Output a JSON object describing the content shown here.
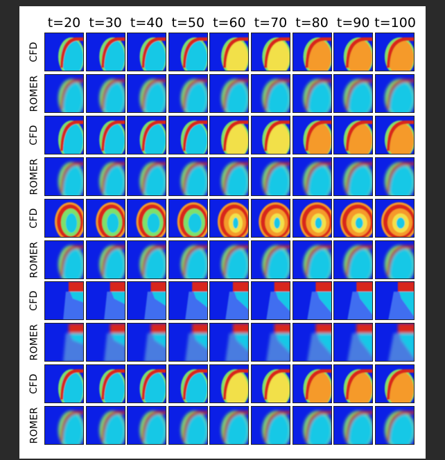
{
  "columns": [
    "t=20",
    "t=30",
    "t=40",
    "t=50",
    "t=60",
    "t=70",
    "t=80",
    "t=90",
    "t=100"
  ],
  "rows": [
    {
      "label": "CFD",
      "kind": "cfd",
      "pattern": "thin-front"
    },
    {
      "label": "ROMER",
      "kind": "romer",
      "pattern": "thin-front"
    },
    {
      "label": "CFD",
      "kind": "cfd",
      "pattern": "thin-front"
    },
    {
      "label": "ROMER",
      "kind": "romer",
      "pattern": "thin-front"
    },
    {
      "label": "CFD",
      "kind": "cfd",
      "pattern": "ring"
    },
    {
      "label": "ROMER",
      "kind": "romer",
      "pattern": "thin-front"
    },
    {
      "label": "CFD",
      "kind": "cfd",
      "pattern": "top-block"
    },
    {
      "label": "ROMER",
      "kind": "romer",
      "pattern": "top-block"
    },
    {
      "label": "CFD",
      "kind": "cfd",
      "pattern": "thin-front"
    },
    {
      "label": "ROMER",
      "kind": "romer",
      "pattern": "thin-front"
    }
  ],
  "colors": {
    "background": "#0b1fe6",
    "cyan": "#19c8e6",
    "green": "#7ee06a",
    "yellow": "#f2e04a",
    "orange": "#f59a2a",
    "red": "#d8281a"
  }
}
